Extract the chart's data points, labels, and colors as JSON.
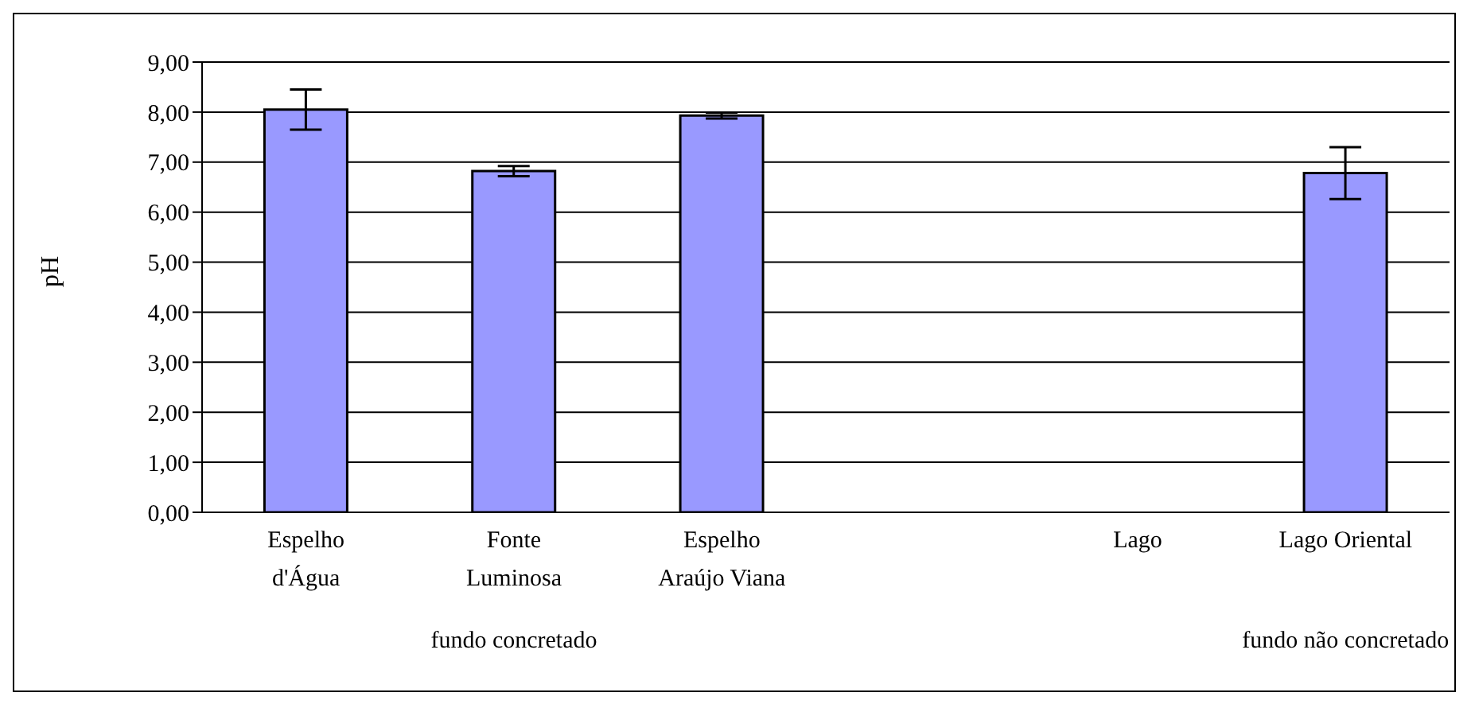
{
  "chart_data": {
    "type": "bar",
    "ylabel": "pH",
    "categories": [
      "Espelho d'Água",
      "Fonte Luminosa",
      "Espelho Araújo Viana",
      null,
      "Lago",
      "Lago Oriental"
    ],
    "values": [
      8.05,
      6.82,
      7.93,
      null,
      null,
      6.78
    ],
    "errors": [
      0.4,
      0.1,
      0.06,
      null,
      null,
      0.52
    ],
    "color": "#9999ff",
    "ylim": [
      0,
      9
    ],
    "yticks": [
      {
        "value": 0,
        "label": "0,00"
      },
      {
        "value": 1,
        "label": "1,00"
      },
      {
        "value": 2,
        "label": "2,00"
      },
      {
        "value": 3,
        "label": "3,00"
      },
      {
        "value": 4,
        "label": "4,00"
      },
      {
        "value": 5,
        "label": "5,00"
      },
      {
        "value": 6,
        "label": "6,00"
      },
      {
        "value": 7,
        "label": "7,00"
      },
      {
        "value": 8,
        "label": "8,00"
      },
      {
        "value": 9,
        "label": "9,00"
      }
    ],
    "grid": "y",
    "annotations": [
      "fundo concretado",
      "fundo não concretado"
    ]
  }
}
